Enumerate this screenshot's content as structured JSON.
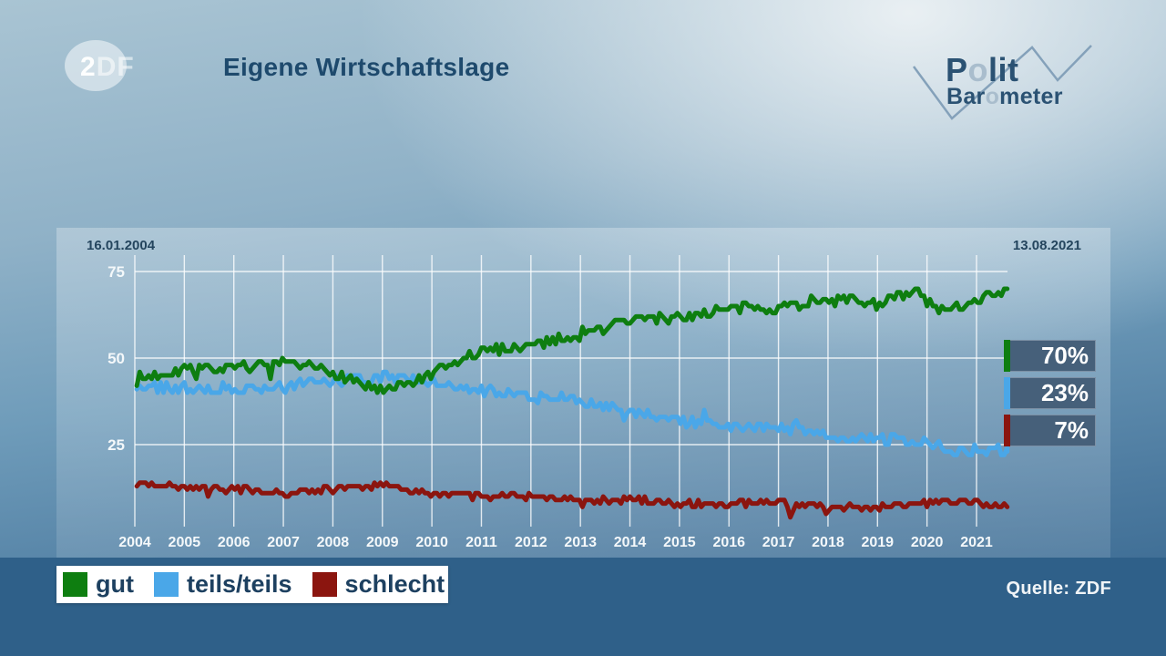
{
  "header": {
    "title": "Eigene Wirtschaftslage",
    "zdf_logo_2": "2",
    "zdf_logo_df": "DF",
    "polit": {
      "p1": "P",
      "p2": "o",
      "p3": "lit",
      "b1": "Bar",
      "b2": "o",
      "b3": "meter"
    }
  },
  "chart_data": {
    "type": "line",
    "title": "Eigene Wirtschaftslage",
    "x_start_label": "16.01.2004",
    "x_end_label": "13.08.2021",
    "x_ticks": [
      2004,
      2005,
      2006,
      2007,
      2008,
      2009,
      2010,
      2011,
      2012,
      2013,
      2014,
      2015,
      2016,
      2017,
      2018,
      2019,
      2020,
      2021
    ],
    "y_ticks": [
      75,
      50,
      25
    ],
    "x_range": [
      2004.04,
      2021.62
    ],
    "y_range": [
      0,
      80
    ],
    "grid": true,
    "legend_position": "bottom-left",
    "sample_step": 0.06,
    "noise_seed": 7,
    "spike_chance": 0.025,
    "spike_amp": 3.2,
    "series": [
      {
        "name": "gut",
        "color": "#0e7e10",
        "noise_amp": 1.6,
        "end_value": 70,
        "anchors": [
          [
            2004.04,
            44
          ],
          [
            2005,
            47
          ],
          [
            2006,
            47
          ],
          [
            2007,
            48
          ],
          [
            2008,
            46
          ],
          [
            2009,
            40
          ],
          [
            2009.6,
            43
          ],
          [
            2010.3,
            47
          ],
          [
            2011,
            52
          ],
          [
            2012,
            54
          ],
          [
            2013,
            57
          ],
          [
            2014,
            61
          ],
          [
            2015,
            62
          ],
          [
            2016,
            64
          ],
          [
            2017,
            65
          ],
          [
            2018,
            67
          ],
          [
            2019,
            66
          ],
          [
            2019.8,
            69
          ],
          [
            2020.3,
            63
          ],
          [
            2020.8,
            66
          ],
          [
            2021.3,
            69
          ],
          [
            2021.62,
            70
          ]
        ]
      },
      {
        "name": "teils/teils",
        "color": "#4aa7e8",
        "noise_amp": 1.6,
        "end_value": 23,
        "anchors": [
          [
            2004.04,
            42
          ],
          [
            2005,
            41
          ],
          [
            2006,
            41
          ],
          [
            2007,
            42
          ],
          [
            2008,
            43
          ],
          [
            2009,
            45
          ],
          [
            2010,
            43
          ],
          [
            2011,
            41
          ],
          [
            2012,
            39
          ],
          [
            2013,
            38
          ],
          [
            2014,
            34
          ],
          [
            2015,
            32
          ],
          [
            2016,
            30
          ],
          [
            2017,
            30
          ],
          [
            2018,
            28
          ],
          [
            2019,
            27
          ],
          [
            2020,
            26
          ],
          [
            2020.5,
            23
          ],
          [
            2021,
            24
          ],
          [
            2021.62,
            23
          ]
        ]
      },
      {
        "name": "schlecht",
        "color": "#8b150f",
        "noise_amp": 0.9,
        "end_value": 7,
        "anchors": [
          [
            2004.04,
            14
          ],
          [
            2005,
            13
          ],
          [
            2006,
            12
          ],
          [
            2007,
            11
          ],
          [
            2008,
            12
          ],
          [
            2009,
            13
          ],
          [
            2010,
            11
          ],
          [
            2011,
            10
          ],
          [
            2012,
            10
          ],
          [
            2013,
            9
          ],
          [
            2014,
            9
          ],
          [
            2015,
            8
          ],
          [
            2016,
            8
          ],
          [
            2017,
            8
          ],
          [
            2018,
            7
          ],
          [
            2019,
            7
          ],
          [
            2020,
            8
          ],
          [
            2020.4,
            9
          ],
          [
            2021,
            8
          ],
          [
            2021.62,
            7
          ]
        ]
      }
    ]
  },
  "badges": [
    {
      "value": "70%",
      "color": "#0e7e10"
    },
    {
      "value": "23%",
      "color": "#4aa7e8"
    },
    {
      "value": "7%",
      "color": "#8b150f"
    }
  ],
  "legend": {
    "items": [
      {
        "label": "gut",
        "color": "#0e7e10"
      },
      {
        "label": "teils/teils",
        "color": "#4aa7e8"
      },
      {
        "label": "schlecht",
        "color": "#8b150f"
      }
    ]
  },
  "footer": {
    "source": "Quelle: ZDF"
  }
}
